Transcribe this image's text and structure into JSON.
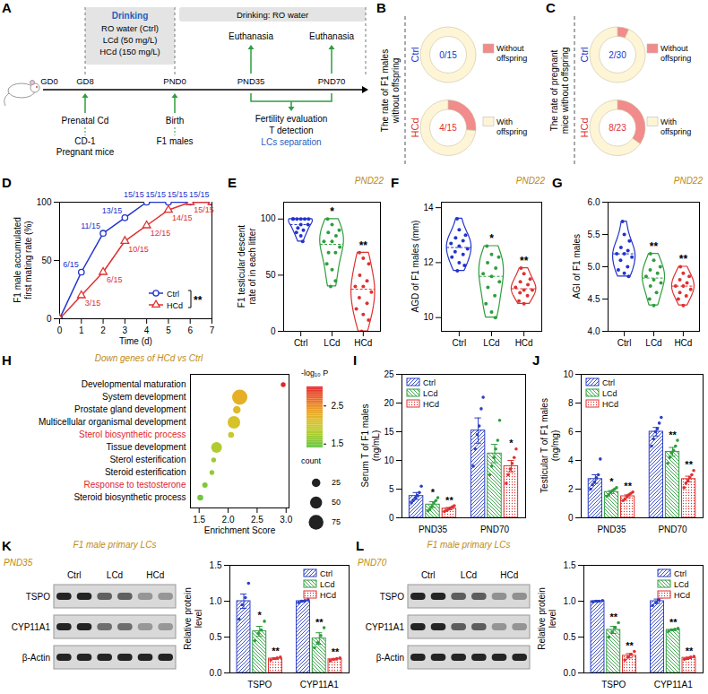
{
  "diagram": {
    "panel": "A",
    "timeline": [
      "GD0",
      "GD8",
      "PND0",
      "PND35",
      "PND70"
    ],
    "cd_box": [
      "Drinking",
      "RO water (Ctrl)",
      "LCd (50 mg/L)",
      "HCd (150 mg/L)"
    ],
    "after_box": "Drinking: RO water",
    "above": [
      "Euthanasia",
      "Euthanasia"
    ],
    "gd8_notes": [
      "Prenatal Cd",
      "CD-1",
      "Pregnant mice"
    ],
    "pnd0_notes": [
      "Birth",
      "F1 males"
    ],
    "window_notes": [
      "Fertility evaluation",
      "T detection",
      "LCs separation"
    ]
  },
  "chart_data": [
    {
      "panel": "B",
      "type": "donut",
      "title": "The rate of F1 males without offspring",
      "categories": [
        "Without offspring",
        "With offspring"
      ],
      "colors": [
        "#f28b8b",
        "#fdf5d6"
      ],
      "legend": "right",
      "series": [
        {
          "name": "Ctrl",
          "color": "#2233cc",
          "values": [
            0,
            15
          ],
          "center_label": "0/15"
        },
        {
          "name": "HCd",
          "color": "#e03030",
          "values": [
            4,
            11
          ],
          "center_label": "4/15"
        }
      ]
    },
    {
      "panel": "C",
      "type": "donut",
      "title": "The rate of pregnant mice without offspring",
      "categories": [
        "Without offspring",
        "With offspring"
      ],
      "colors": [
        "#f28b8b",
        "#fdf5d6"
      ],
      "legend": "right",
      "series": [
        {
          "name": "Ctrl",
          "color": "#2233cc",
          "values": [
            2,
            28
          ],
          "center_label": "2/30"
        },
        {
          "name": "HCd",
          "color": "#e03030",
          "values": [
            8,
            15
          ],
          "center_label": "8/23"
        }
      ]
    },
    {
      "panel": "D",
      "type": "line",
      "x": [
        0,
        1,
        2,
        3,
        4,
        5,
        6,
        7
      ],
      "xlabel": "Time (d)",
      "ylabel": "F1 male accumulated first mating rate (%)",
      "xlim": [
        0,
        7
      ],
      "xticks": [
        0,
        1,
        2,
        3,
        4,
        5,
        6,
        7
      ],
      "ylim": [
        0,
        100
      ],
      "yticks": [
        0,
        50,
        100
      ],
      "legend": "bottom-right",
      "annotation": "**",
      "data_labels": true,
      "series": [
        {
          "name": "Ctrl",
          "color": "#2233cc",
          "marker": "circle",
          "values": [
            0,
            40,
            73.3,
            86.7,
            100,
            100,
            100,
            100
          ],
          "value_labels": [
            null,
            "6/15",
            "11/15",
            "13/15",
            "15/15",
            "15/15",
            "15/15",
            "15/15"
          ]
        },
        {
          "name": "HCd",
          "color": "#e03030",
          "marker": "triangle",
          "values": [
            0,
            20,
            40,
            66.7,
            80,
            93.3,
            100,
            100
          ],
          "value_labels": [
            null,
            "3/15",
            "6/15",
            "10/15",
            "12/15",
            "14/15",
            "15/15",
            null
          ]
        }
      ]
    },
    {
      "panel": "E",
      "type": "violin",
      "subtitle": "PND22",
      "ylabel": "F1 testicular descent rate of in each litter",
      "categories": [
        "Ctrl",
        "LCd",
        "HCd"
      ],
      "colors": [
        "#2233cc",
        "#2e9e3e",
        "#e03030"
      ],
      "ylim": [
        0,
        115
      ],
      "yticks": [
        0,
        50,
        100
      ],
      "significance": [
        null,
        "*",
        "**"
      ],
      "points": [
        [
          100,
          100,
          100,
          100,
          100,
          100,
          95,
          95,
          92,
          90,
          88,
          85,
          80
        ],
        [
          100,
          95,
          90,
          88,
          85,
          80,
          80,
          75,
          70,
          70,
          60,
          55,
          45,
          40
        ],
        [
          70,
          65,
          60,
          50,
          45,
          40,
          40,
          35,
          30,
          25,
          20,
          15,
          10,
          0
        ]
      ]
    },
    {
      "panel": "F",
      "type": "violin",
      "subtitle": "PND22",
      "ylabel": "AGD of F1 males (mm)",
      "categories": [
        "Ctrl",
        "LCd",
        "HCd"
      ],
      "colors": [
        "#2233cc",
        "#2e9e3e",
        "#e03030"
      ],
      "ylim": [
        9.5,
        14.2
      ],
      "yticks": [
        10,
        12,
        14
      ],
      "significance": [
        null,
        "*",
        "**"
      ],
      "points": [
        [
          13.6,
          13.2,
          13.0,
          12.9,
          12.8,
          12.7,
          12.6,
          12.5,
          12.4,
          12.3,
          12.2,
          12.0,
          11.9,
          11.7
        ],
        [
          12.6,
          12.3,
          12.2,
          12.0,
          11.8,
          11.6,
          11.5,
          11.3,
          11.1,
          10.8,
          10.5,
          10.2,
          10.0
        ],
        [
          11.8,
          11.6,
          11.4,
          11.3,
          11.2,
          11.1,
          11.0,
          11.0,
          10.9,
          10.8,
          10.6,
          10.5
        ]
      ]
    },
    {
      "panel": "G",
      "type": "violin",
      "subtitle": "PND22",
      "ylabel": "AGI of F1 males",
      "categories": [
        "Ctrl",
        "LCd",
        "HCd"
      ],
      "colors": [
        "#2233cc",
        "#2e9e3e",
        "#e03030"
      ],
      "ylim": [
        4,
        6
      ],
      "yticks": [
        {
          "value": 4,
          "label": "4.0"
        },
        4.5,
        {
          "value": 5,
          "label": "5.0"
        },
        5.5,
        {
          "value": 6,
          "label": "6.0"
        }
      ],
      "significance": [
        null,
        "**",
        "**"
      ],
      "points": [
        [
          5.7,
          5.5,
          5.4,
          5.3,
          5.25,
          5.2,
          5.2,
          5.15,
          5.1,
          5.0,
          4.95,
          4.9,
          4.85
        ],
        [
          5.2,
          5.1,
          5.0,
          4.95,
          4.9,
          4.85,
          4.8,
          4.75,
          4.7,
          4.6,
          4.5,
          4.4
        ],
        [
          5.0,
          4.9,
          4.85,
          4.8,
          4.75,
          4.7,
          4.7,
          4.65,
          4.6,
          4.55,
          4.5,
          4.4
        ]
      ]
    },
    {
      "panel": "H",
      "type": "bubble",
      "title": "Down genes of HCd vs Ctrl",
      "xlabel": "Enrichment Score",
      "xlim": [
        1.35,
        3.05
      ],
      "xticks": [
        1.5,
        {
          "value": 2,
          "label": "2.0"
        },
        2.5,
        {
          "value": 3,
          "label": "3.0"
        }
      ],
      "categories": [
        "Developmental maturation",
        "System development",
        "Prostate gland development",
        "Multicellular organismal development",
        "Sterol biosynthetic process",
        "Tissue development",
        "Sterol esterification",
        "Steroid esterification",
        "Response to testosterone",
        "Steroid biosynthetic process"
      ],
      "values": [
        2.95,
        2.2,
        2.15,
        2.1,
        2.05,
        1.8,
        1.75,
        1.72,
        1.6,
        1.52
      ],
      "sizes": [
        8,
        80,
        20,
        55,
        12,
        40,
        8,
        8,
        10,
        12
      ],
      "neg_log10_p": [
        3.0,
        2.25,
        2.15,
        2.05,
        1.95,
        1.8,
        1.7,
        1.65,
        1.55,
        1.5
      ],
      "label_colors": [
        "#000000",
        "#000000",
        "#000000",
        "#000000",
        "#e0262b",
        "#000000",
        "#000000",
        "#000000",
        "#e0262b",
        "#000000"
      ],
      "color_label": "-log₁₀ P",
      "color_range": [
        1.4,
        3.0
      ],
      "color_ticks": [
        1.5,
        2.5
      ],
      "size_label": "count",
      "size_ticks": [
        25,
        50,
        75
      ]
    },
    {
      "panel": "I",
      "type": "bar",
      "ylabel": "Serum T of F1 males (ng/mL)",
      "categories": [
        "PND35",
        "PND70"
      ],
      "ylim": [
        0,
        25
      ],
      "yticks": [
        0,
        5,
        10,
        15,
        20,
        25
      ],
      "legend": "top-left",
      "series": [
        {
          "name": "Ctrl",
          "color": "#2b3fc4",
          "values": [
            3.8,
            15.2
          ],
          "errors": [
            0.6,
            2.2
          ],
          "points": [
            [
              2.6,
              3.0,
              3.5,
              3.9,
              4.4,
              5.5
            ],
            [
              9.0,
              12.0,
              14.5,
              16.0,
              19.0,
              21.0
            ]
          ],
          "significance": [
            null,
            null
          ]
        },
        {
          "name": "LCd",
          "color": "#2e9e3e",
          "values": [
            2.3,
            11.2
          ],
          "errors": [
            0.5,
            1.6
          ],
          "points": [
            [
              1.2,
              1.5,
              2.0,
              2.6,
              3.0,
              3.5
            ],
            [
              7.5,
              9.0,
              10.5,
              12.0,
              13.5,
              17.0
            ]
          ],
          "significance": [
            "*",
            null
          ]
        },
        {
          "name": "HCd",
          "color": "#e03030",
          "values": [
            1.6,
            9.0
          ],
          "errors": [
            0.2,
            1.0
          ],
          "points": [
            [
              1.1,
              1.3,
              1.5,
              1.7,
              1.9,
              2.1
            ],
            [
              6.0,
              7.5,
              8.5,
              9.5,
              10.5,
              12.0
            ]
          ],
          "significance": [
            "**",
            "*"
          ]
        }
      ]
    },
    {
      "panel": "J",
      "type": "bar",
      "ylabel": "Testicular T of F1 males (ng/mg)",
      "categories": [
        "PND35",
        "PND70"
      ],
      "ylim": [
        0,
        10
      ],
      "yticks": [
        0,
        2,
        4,
        6,
        8,
        10
      ],
      "legend": "top-left",
      "series": [
        {
          "name": "Ctrl",
          "color": "#2b3fc4",
          "values": [
            2.7,
            6.0
          ],
          "errors": [
            0.3,
            0.3
          ],
          "points": [
            [
              2.0,
              2.3,
              2.5,
              2.8,
              3.0,
              4.1
            ],
            [
              5.0,
              5.5,
              6.0,
              6.2,
              6.6,
              7.0
            ]
          ],
          "significance": [
            null,
            null
          ]
        },
        {
          "name": "LCd",
          "color": "#2e9e3e",
          "values": [
            1.8,
            4.6
          ],
          "errors": [
            0.1,
            0.3
          ],
          "points": [
            [
              1.5,
              1.6,
              1.8,
              1.9,
              2.0,
              2.1
            ],
            [
              3.8,
              4.2,
              4.5,
              4.7,
              5.0,
              5.4
            ]
          ],
          "significance": [
            "*",
            "**"
          ]
        },
        {
          "name": "HCd",
          "color": "#e03030",
          "values": [
            1.5,
            2.7
          ],
          "errors": [
            0.1,
            0.2
          ],
          "points": [
            [
              1.2,
              1.3,
              1.5,
              1.6,
              1.7,
              1.8
            ],
            [
              2.1,
              2.4,
              2.6,
              2.8,
              3.0,
              3.3
            ]
          ],
          "significance": [
            "**",
            "**"
          ]
        }
      ]
    },
    {
      "panel": "K",
      "type": "bar",
      "blot": {
        "title": "F1 male primary LCs",
        "time": "PND35",
        "rows": [
          "TSPO",
          "CYP11A1",
          "β-Actin"
        ]
      },
      "ylabel": "Relative protein level",
      "categories": [
        "TSPO",
        "CYP11A1"
      ],
      "ylim": [
        0,
        1.5
      ],
      "yticks": [
        {
          "value": 0,
          "label": "0.0"
        },
        0.5,
        {
          "value": 1,
          "label": "1.0"
        },
        1.5
      ],
      "legend": "top-right",
      "series": [
        {
          "name": "Ctrl",
          "color": "#2b3fc4",
          "values": [
            1.0,
            1.0
          ],
          "errors": [
            0.1,
            0.01
          ],
          "points": [
            [
              0.75,
              0.95,
              1.05,
              1.25
            ],
            [
              0.98,
              1.0,
              1.01,
              1.02
            ]
          ],
          "significance": [
            null,
            null
          ]
        },
        {
          "name": "LCd",
          "color": "#2e9e3e",
          "values": [
            0.58,
            0.48
          ],
          "errors": [
            0.07,
            0.08
          ],
          "points": [
            [
              0.45,
              0.55,
              0.6,
              0.72
            ],
            [
              0.35,
              0.42,
              0.52,
              0.63
            ]
          ],
          "significance": [
            "*",
            "**"
          ]
        },
        {
          "name": "HCd",
          "color": "#e03030",
          "values": [
            0.2,
            0.19
          ],
          "errors": [
            0.01,
            0.01
          ],
          "points": [
            [
              0.18,
              0.2,
              0.21,
              0.22
            ],
            [
              0.17,
              0.19,
              0.2,
              0.21
            ]
          ],
          "significance": [
            "**",
            "**"
          ]
        }
      ]
    },
    {
      "panel": "L",
      "type": "bar",
      "blot": {
        "title": "F1 male primary LCs",
        "time": "PND70",
        "rows": [
          "TSPO",
          "CYP11A1",
          "β-Actin"
        ]
      },
      "ylabel": "Relative protein level",
      "categories": [
        "TSPO",
        "CYP11A1"
      ],
      "ylim": [
        0,
        1.5
      ],
      "yticks": [
        {
          "value": 0,
          "label": "0.0"
        },
        0.5,
        {
          "value": 1,
          "label": "1.0"
        },
        1.5
      ],
      "legend": "top-right",
      "series": [
        {
          "name": "Ctrl",
          "color": "#2b3fc4",
          "values": [
            1.0,
            1.0
          ],
          "errors": [
            0.01,
            0.03
          ],
          "points": [
            [
              0.99,
              1.0,
              1.0,
              1.01
            ],
            [
              0.94,
              0.98,
              1.02,
              1.06
            ]
          ],
          "significance": [
            null,
            null
          ]
        },
        {
          "name": "LCd",
          "color": "#2e9e3e",
          "values": [
            0.6,
            0.6
          ],
          "errors": [
            0.05,
            0.01
          ],
          "points": [
            [
              0.5,
              0.57,
              0.63,
              0.7
            ],
            [
              0.58,
              0.6,
              0.61,
              0.62
            ]
          ],
          "significance": [
            "**",
            "**"
          ]
        },
        {
          "name": "HCd",
          "color": "#e03030",
          "values": [
            0.24,
            0.21
          ],
          "errors": [
            0.03,
            0.01
          ],
          "points": [
            [
              0.18,
              0.22,
              0.26,
              0.3
            ],
            [
              0.19,
              0.2,
              0.22,
              0.23
            ]
          ],
          "significance": [
            "**",
            "**"
          ]
        }
      ]
    }
  ]
}
